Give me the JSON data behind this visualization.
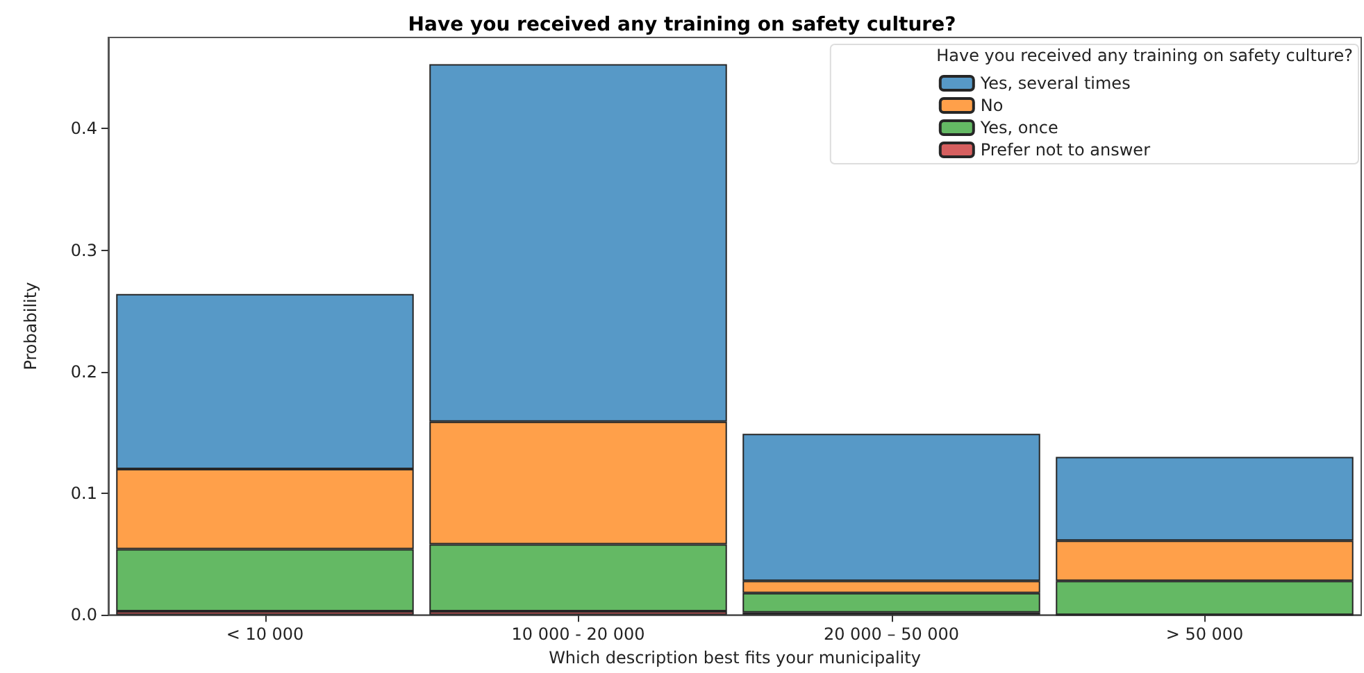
{
  "chart_data": {
    "type": "bar",
    "title": "Have you received any training on safety culture?",
    "xlabel": "Which description best fits your municipality",
    "ylabel": "Probability",
    "legend_title": "Have you received any training on safety culture?",
    "categories": [
      "< 10 000",
      "10 000 - 20 000",
      "20 000 – 50 000",
      "> 50 000"
    ],
    "stacked": true,
    "legend": "top right",
    "ylim": [
      0,
      0.475
    ],
    "yticks": [
      {
        "value": 0,
        "label": "0.0"
      },
      {
        "value": 0.1,
        "label": "0.1"
      },
      {
        "value": 0.2,
        "label": "0.2"
      },
      {
        "value": 0.3,
        "label": "0.3"
      },
      {
        "value": 0.4,
        "label": "0.4"
      }
    ],
    "series": [
      {
        "name": "Prefer not to answer",
        "color": "#d65f5f",
        "values": [
          0.003,
          0.003,
          0.002,
          0
        ]
      },
      {
        "name": "Yes, once",
        "color": "#64b964",
        "values": [
          0.051,
          0.055,
          0.016,
          0.028
        ]
      },
      {
        "name": "No",
        "color": "#ffa04a",
        "values": [
          0.066,
          0.101,
          0.01,
          0.033
        ]
      },
      {
        "name": "Yes, several times",
        "color": "#5799c7",
        "values": [
          0.144,
          0.294,
          0.121,
          0.069
        ]
      }
    ]
  }
}
